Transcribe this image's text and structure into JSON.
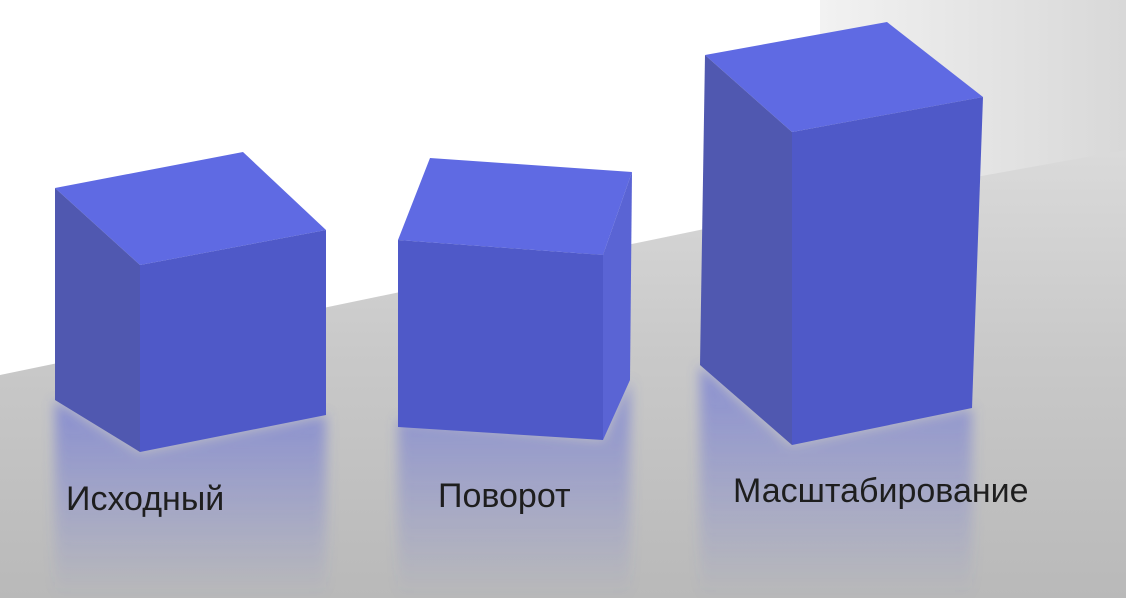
{
  "cubes": [
    {
      "label": "Исходный",
      "color": "#5560d8"
    },
    {
      "label": "Поворот",
      "color": "#5560d8"
    },
    {
      "label": "Масштабирование",
      "color": "#5560d8"
    }
  ],
  "colors": {
    "cube_top": "#5f6ae3",
    "cube_front": "#4f59c8",
    "cube_side": "#5058b0",
    "floor_light": "#e6e6e6",
    "floor_dark": "#c2c2c2",
    "wall": "#ffffff",
    "back_wall": "#dcdcdc"
  }
}
